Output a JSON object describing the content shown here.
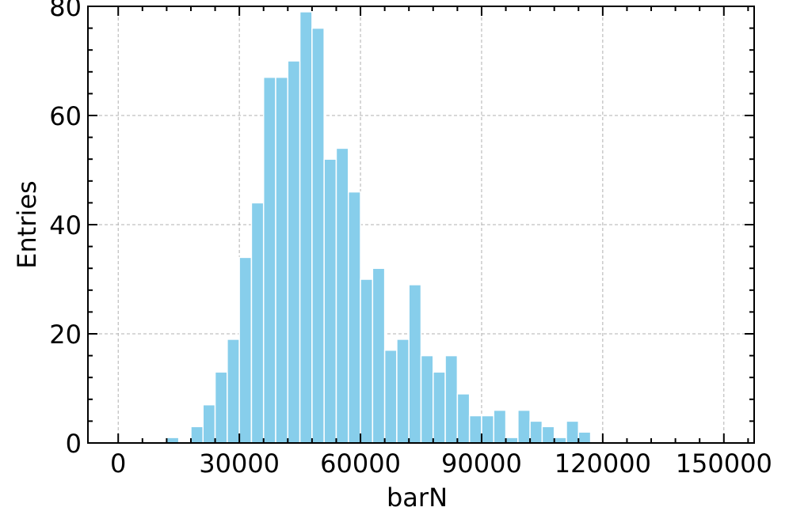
{
  "chart_data": {
    "type": "bar",
    "histogram": true,
    "xlabel": "barN",
    "ylabel": "Entries",
    "xlim": [
      -7500,
      157500
    ],
    "ylim": [
      0,
      80
    ],
    "x_ticks": [
      0,
      30000,
      60000,
      90000,
      120000,
      150000
    ],
    "x_tick_labels": [
      "0",
      "30000",
      "60000",
      "90000",
      "120000",
      "150000"
    ],
    "y_ticks": [
      0,
      20,
      40,
      60,
      80
    ],
    "y_tick_labels": [
      "0",
      "20",
      "40",
      "60",
      "80"
    ],
    "bin_width": 3000,
    "bins_start": [
      12000,
      15000,
      18000,
      21000,
      24000,
      27000,
      30000,
      33000,
      36000,
      39000,
      42000,
      45000,
      48000,
      51000,
      54000,
      57000,
      60000,
      63000,
      66000,
      69000,
      72000,
      75000,
      78000,
      81000,
      84000,
      87000,
      90000,
      93000,
      96000,
      99000,
      102000,
      105000,
      108000,
      111000,
      114000
    ],
    "values": [
      1,
      0,
      3,
      7,
      13,
      19,
      34,
      44,
      67,
      67,
      70,
      79,
      76,
      52,
      54,
      46,
      30,
      32,
      17,
      19,
      29,
      16,
      13,
      16,
      9,
      5,
      5,
      6,
      1,
      6,
      4,
      3,
      1,
      4,
      2
    ],
    "bar_color": "#87ceeb",
    "grid": true
  }
}
